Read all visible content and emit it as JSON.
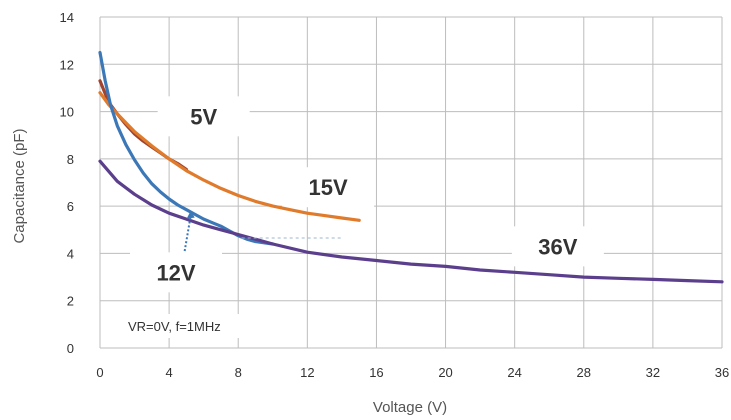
{
  "chart_data": {
    "type": "line",
    "title": "",
    "xlabel": "Voltage (V)",
    "ylabel": "Capacitance (pF)",
    "xlim": [
      0,
      36
    ],
    "ylim": [
      0,
      14
    ],
    "xticks": [
      0,
      4,
      8,
      12,
      16,
      20,
      24,
      28,
      32,
      36
    ],
    "yticks": [
      0,
      2,
      4,
      6,
      8,
      10,
      12,
      14
    ],
    "grid": true,
    "legend": "none",
    "annotation": "VR=0V, f=1MHz",
    "series": [
      {
        "name": "5V",
        "color": "#a0442f",
        "x": [
          0,
          0.5,
          1,
          1.5,
          2,
          2.5,
          3,
          3.5,
          4,
          4.5,
          5
        ],
        "y": [
          11.3,
          10.4,
          9.9,
          9.45,
          9.05,
          8.75,
          8.5,
          8.25,
          8.0,
          7.8,
          7.55
        ]
      },
      {
        "name": "15V",
        "color": "#e07b2c",
        "x": [
          0,
          0.5,
          1,
          2,
          3,
          4,
          5,
          6,
          7,
          8,
          9,
          10,
          11,
          12,
          13,
          14,
          15
        ],
        "y": [
          10.8,
          10.3,
          9.9,
          9.15,
          8.55,
          8.0,
          7.5,
          7.1,
          6.75,
          6.45,
          6.2,
          6.0,
          5.85,
          5.7,
          5.6,
          5.5,
          5.4
        ]
      },
      {
        "name": "12V",
        "color": "#3c78b8",
        "x": [
          0,
          0.3,
          0.6,
          1,
          1.5,
          2,
          2.5,
          3,
          3.5,
          4,
          4.5,
          5,
          5.5,
          6,
          6.5,
          7,
          7.5,
          8,
          8.5,
          9,
          9.5,
          10
        ],
        "y": [
          12.5,
          11.3,
          10.3,
          9.4,
          8.6,
          7.95,
          7.4,
          6.95,
          6.6,
          6.3,
          6.05,
          5.85,
          5.65,
          5.45,
          5.3,
          5.15,
          4.95,
          4.75,
          4.6,
          4.5,
          4.45,
          4.4
        ]
      },
      {
        "name": "36V",
        "color": "#5b3f8c",
        "x": [
          0,
          1,
          2,
          3,
          4,
          5,
          6,
          7,
          8,
          10,
          12,
          14,
          16,
          18,
          20,
          22,
          24,
          26,
          28,
          30,
          32,
          34,
          36
        ],
        "y": [
          7.9,
          7.05,
          6.5,
          6.05,
          5.7,
          5.45,
          5.2,
          5.0,
          4.8,
          4.4,
          4.05,
          3.85,
          3.7,
          3.55,
          3.45,
          3.3,
          3.2,
          3.1,
          3.0,
          2.95,
          2.9,
          2.85,
          2.8
        ]
      }
    ],
    "labels": [
      {
        "text": "5V",
        "x": 6,
        "y": 9.8
      },
      {
        "text": "15V",
        "x": 13.2,
        "y": 6.8
      },
      {
        "text": "12V",
        "x": 4.4,
        "y": 3.2
      },
      {
        "text": "36V",
        "x": 26.5,
        "y": 4.3
      }
    ]
  }
}
